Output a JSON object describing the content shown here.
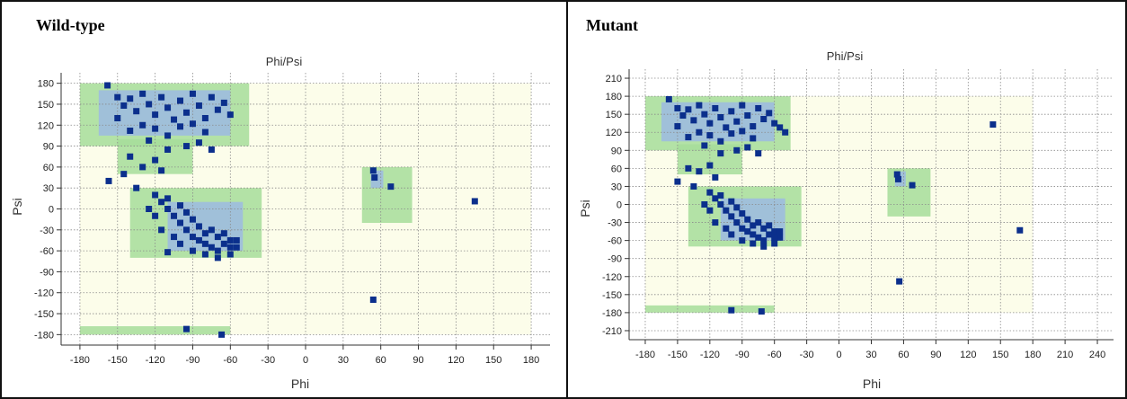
{
  "chart_data": [
    {
      "type": "scatter",
      "panel_label": "Wild-type",
      "title": "Phi/Psi",
      "xlabel": "Phi",
      "ylabel": "Psi",
      "xlim": [
        -195,
        195
      ],
      "ylim": [
        -195,
        195
      ],
      "xticks": [
        -180,
        -150,
        -120,
        -90,
        -60,
        -30,
        0,
        30,
        60,
        90,
        120,
        150,
        180
      ],
      "yticks": [
        180,
        150,
        120,
        90,
        60,
        30,
        0,
        -30,
        -60,
        -90,
        -120,
        -150,
        -180
      ],
      "grid": true,
      "background_regions": [
        {
          "level": "allowed",
          "color": "#a6dd9a",
          "x_range": [
            -180,
            -45
          ],
          "y_range": [
            90,
            180
          ]
        },
        {
          "level": "core",
          "color": "#9bb8e6",
          "x_range": [
            -165,
            -60
          ],
          "y_range": [
            105,
            170
          ]
        },
        {
          "level": "allowed",
          "color": "#a6dd9a",
          "x_range": [
            -150,
            -90
          ],
          "y_range": [
            50,
            100
          ]
        },
        {
          "level": "allowed",
          "color": "#a6dd9a",
          "x_range": [
            -140,
            -35
          ],
          "y_range": [
            -70,
            30
          ]
        },
        {
          "level": "core",
          "color": "#9bb8e6",
          "x_range": [
            -110,
            -50
          ],
          "y_range": [
            -60,
            10
          ]
        },
        {
          "level": "allowed",
          "color": "#a6dd9a",
          "x_range": [
            45,
            85
          ],
          "y_range": [
            -20,
            60
          ]
        },
        {
          "level": "core",
          "color": "#9bb8e6",
          "x_range": [
            52,
            62
          ],
          "y_range": [
            30,
            55
          ]
        },
        {
          "level": "allowed",
          "color": "#a6dd9a",
          "x_range": [
            -180,
            -60
          ],
          "y_range": [
            -180,
            -168
          ]
        },
        {
          "level": "generous",
          "color": "#fbfde6",
          "x_range": [
            -180,
            180
          ],
          "y_range": [
            -180,
            180
          ]
        }
      ],
      "points": [
        [
          -158,
          177
        ],
        [
          -150,
          160
        ],
        [
          -145,
          148
        ],
        [
          -140,
          158
        ],
        [
          -135,
          140
        ],
        [
          -130,
          165
        ],
        [
          -125,
          150
        ],
        [
          -120,
          135
        ],
        [
          -115,
          160
        ],
        [
          -110,
          145
        ],
        [
          -105,
          128
        ],
        [
          -100,
          155
        ],
        [
          -95,
          138
        ],
        [
          -90,
          165
        ],
        [
          -85,
          148
        ],
        [
          -80,
          130
        ],
        [
          -75,
          160
        ],
        [
          -70,
          142
        ],
        [
          -65,
          152
        ],
        [
          -60,
          135
        ],
        [
          -130,
          120
        ],
        [
          -120,
          115
        ],
        [
          -110,
          105
        ],
        [
          -100,
          118
        ],
        [
          -90,
          122
        ],
        [
          -80,
          110
        ],
        [
          -140,
          112
        ],
        [
          -150,
          130
        ],
        [
          -95,
          90
        ],
        [
          -125,
          98
        ],
        [
          -110,
          85
        ],
        [
          -85,
          95
        ],
        [
          -75,
          85
        ],
        [
          -140,
          75
        ],
        [
          -130,
          60
        ],
        [
          -120,
          70
        ],
        [
          -115,
          55
        ],
        [
          -145,
          50
        ],
        [
          -157,
          40
        ],
        [
          -135,
          30
        ],
        [
          -120,
          20
        ],
        [
          -115,
          10
        ],
        [
          -110,
          0
        ],
        [
          -105,
          -10
        ],
        [
          -100,
          -20
        ],
        [
          -95,
          -30
        ],
        [
          -90,
          -40
        ],
        [
          -85,
          -45
        ],
        [
          -80,
          -50
        ],
        [
          -75,
          -55
        ],
        [
          -70,
          -40
        ],
        [
          -65,
          -50
        ],
        [
          -60,
          -45
        ],
        [
          -55,
          -55
        ],
        [
          -110,
          15
        ],
        [
          -100,
          5
        ],
        [
          -95,
          -5
        ],
        [
          -90,
          -15
        ],
        [
          -85,
          -25
        ],
        [
          -80,
          -35
        ],
        [
          -75,
          -30
        ],
        [
          -70,
          -60
        ],
        [
          -65,
          -35
        ],
        [
          -60,
          -55
        ],
        [
          -105,
          -40
        ],
        [
          -115,
          -30
        ],
        [
          -120,
          -10
        ],
        [
          -125,
          0
        ],
        [
          -100,
          -50
        ],
        [
          -90,
          -60
        ],
        [
          -80,
          -65
        ],
        [
          -70,
          -70
        ],
        [
          -60,
          -65
        ],
        [
          -55,
          -45
        ],
        [
          54,
          55
        ],
        [
          55,
          45
        ],
        [
          68,
          32
        ],
        [
          135,
          11
        ],
        [
          54,
          -130
        ],
        [
          -95,
          -172
        ],
        [
          -67,
          -180
        ],
        [
          -110,
          -62
        ]
      ],
      "point_color": "#0b2f8c"
    },
    {
      "type": "scatter",
      "panel_label": "Mutant",
      "title": "Phi/Psi",
      "xlabel": "Phi",
      "ylabel": "Psi",
      "xlim": [
        -195,
        255
      ],
      "ylim": [
        -225,
        225
      ],
      "xticks": [
        -180,
        -150,
        -120,
        -90,
        -60,
        -30,
        0,
        30,
        60,
        90,
        120,
        150,
        180,
        210,
        240
      ],
      "yticks": [
        210,
        180,
        150,
        120,
        90,
        60,
        30,
        0,
        -30,
        -60,
        -90,
        -120,
        -150,
        -180,
        -210
      ],
      "grid": true,
      "background_regions": [
        {
          "level": "allowed",
          "color": "#a6dd9a",
          "x_range": [
            -180,
            -45
          ],
          "y_range": [
            90,
            180
          ]
        },
        {
          "level": "core",
          "color": "#9bb8e6",
          "x_range": [
            -165,
            -60
          ],
          "y_range": [
            105,
            170
          ]
        },
        {
          "level": "allowed",
          "color": "#a6dd9a",
          "x_range": [
            -150,
            -90
          ],
          "y_range": [
            50,
            100
          ]
        },
        {
          "level": "allowed",
          "color": "#a6dd9a",
          "x_range": [
            -140,
            -35
          ],
          "y_range": [
            -70,
            30
          ]
        },
        {
          "level": "core",
          "color": "#9bb8e6",
          "x_range": [
            -110,
            -50
          ],
          "y_range": [
            -60,
            10
          ]
        },
        {
          "level": "allowed",
          "color": "#a6dd9a",
          "x_range": [
            45,
            85
          ],
          "y_range": [
            -20,
            60
          ]
        },
        {
          "level": "core",
          "color": "#9bb8e6",
          "x_range": [
            52,
            62
          ],
          "y_range": [
            30,
            55
          ]
        },
        {
          "level": "allowed",
          "color": "#a6dd9a",
          "x_range": [
            -180,
            -60
          ],
          "y_range": [
            -180,
            -168
          ]
        },
        {
          "level": "generous",
          "color": "#fbfde6",
          "x_range": [
            -180,
            180
          ],
          "y_range": [
            -180,
            180
          ]
        }
      ],
      "points": [
        [
          -158,
          175
        ],
        [
          -150,
          160
        ],
        [
          -145,
          148
        ],
        [
          -140,
          158
        ],
        [
          -135,
          140
        ],
        [
          -130,
          165
        ],
        [
          -125,
          150
        ],
        [
          -120,
          135
        ],
        [
          -115,
          160
        ],
        [
          -110,
          145
        ],
        [
          -105,
          128
        ],
        [
          -100,
          155
        ],
        [
          -95,
          138
        ],
        [
          -90,
          165
        ],
        [
          -85,
          148
        ],
        [
          -80,
          130
        ],
        [
          -75,
          160
        ],
        [
          -70,
          142
        ],
        [
          -65,
          152
        ],
        [
          -60,
          135
        ],
        [
          -50,
          120
        ],
        [
          -55,
          128
        ],
        [
          -130,
          120
        ],
        [
          -120,
          115
        ],
        [
          -110,
          105
        ],
        [
          -100,
          118
        ],
        [
          -90,
          122
        ],
        [
          -80,
          110
        ],
        [
          -140,
          112
        ],
        [
          -150,
          130
        ],
        [
          -95,
          90
        ],
        [
          -125,
          98
        ],
        [
          -110,
          85
        ],
        [
          -85,
          95
        ],
        [
          -75,
          85
        ],
        [
          -140,
          60
        ],
        [
          -130,
          55
        ],
        [
          -120,
          65
        ],
        [
          -115,
          45
        ],
        [
          -150,
          38
        ],
        [
          -135,
          30
        ],
        [
          -120,
          20
        ],
        [
          -115,
          10
        ],
        [
          -110,
          0
        ],
        [
          -105,
          -10
        ],
        [
          -100,
          -20
        ],
        [
          -95,
          -30
        ],
        [
          -90,
          -40
        ],
        [
          -85,
          -45
        ],
        [
          -80,
          -50
        ],
        [
          -75,
          -55
        ],
        [
          -70,
          -40
        ],
        [
          -65,
          -50
        ],
        [
          -60,
          -45
        ],
        [
          -55,
          -55
        ],
        [
          -110,
          15
        ],
        [
          -100,
          5
        ],
        [
          -95,
          -5
        ],
        [
          -90,
          -15
        ],
        [
          -85,
          -25
        ],
        [
          -80,
          -35
        ],
        [
          -75,
          -30
        ],
        [
          -70,
          -60
        ],
        [
          -65,
          -35
        ],
        [
          -60,
          -55
        ],
        [
          -105,
          -40
        ],
        [
          -115,
          -30
        ],
        [
          -120,
          -10
        ],
        [
          -125,
          0
        ],
        [
          -100,
          -50
        ],
        [
          -90,
          -60
        ],
        [
          -80,
          -65
        ],
        [
          -70,
          -70
        ],
        [
          -60,
          -65
        ],
        [
          -55,
          -45
        ],
        [
          54,
          50
        ],
        [
          55,
          42
        ],
        [
          68,
          32
        ],
        [
          143,
          133
        ],
        [
          56,
          -128
        ],
        [
          168,
          -43
        ],
        [
          -100,
          -176
        ],
        [
          -72,
          -178
        ]
      ],
      "point_color": "#0b2f8c"
    }
  ]
}
